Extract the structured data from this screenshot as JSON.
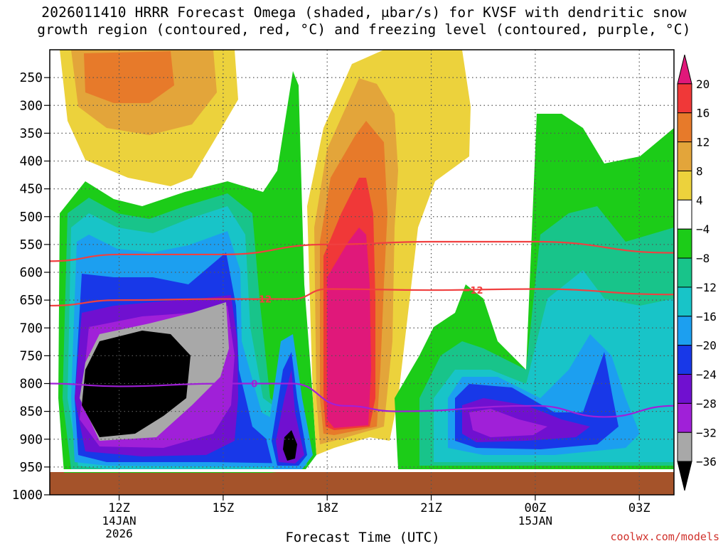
{
  "title_line1": "2026011410 HRRR Forecast Omega (shaded, μbar/s) for KVSF with dendritic snow",
  "title_line2": "growth region (contoured, red, °C) and freezing level (contoured, purple, °C)",
  "chart_data": {
    "type": "heatmap",
    "xlabel": "Forecast Time (UTC)",
    "x_ticks": [
      {
        "label": "12Z",
        "sub": [
          "14JAN",
          "2026"
        ],
        "hour": 12
      },
      {
        "label": "15Z",
        "sub": [],
        "hour": 15
      },
      {
        "label": "18Z",
        "sub": [],
        "hour": 18
      },
      {
        "label": "21Z",
        "sub": [],
        "hour": 21
      },
      {
        "label": "00Z",
        "sub": [
          "15JAN"
        ],
        "hour": 24
      },
      {
        "label": "03Z",
        "sub": [],
        "hour": 27
      }
    ],
    "xlim_hours": [
      10,
      28
    ],
    "y_ticks": [
      250,
      300,
      350,
      400,
      450,
      500,
      550,
      600,
      650,
      700,
      750,
      800,
      850,
      900,
      950,
      1000
    ],
    "ylim_hPa": [
      200,
      1000
    ],
    "colorbar": {
      "labels": [
        "20",
        "16",
        "12",
        "8",
        "4",
        "−4",
        "−8",
        "−12",
        "−16",
        "−20",
        "−24",
        "−28",
        "−32",
        "−36"
      ],
      "colors": [
        "#e0187a",
        "#f03838",
        "#e77a2a",
        "#e3a53a",
        "#ecd23c",
        "#ffffff",
        "#1ccc18",
        "#18c48a",
        "#18c4c8",
        "#1c9ff0",
        "#1838e8",
        "#7010d0",
        "#a020d8",
        "#a8a8a8",
        "#000000"
      ]
    },
    "contours": [
      {
        "label": "−12",
        "color": "#f04040",
        "points": [
          [
            10,
            580
          ],
          [
            12,
            568
          ],
          [
            15,
            568
          ],
          [
            18,
            550
          ],
          [
            21,
            545
          ],
          [
            24,
            545
          ],
          [
            28,
            565
          ]
        ]
      },
      {
        "label": "−12",
        "color": "#f04040",
        "points": [
          [
            10,
            660
          ],
          [
            12,
            650
          ],
          [
            15,
            648
          ],
          [
            17,
            648
          ],
          [
            18,
            630
          ],
          [
            21,
            632
          ],
          [
            24,
            630
          ],
          [
            28,
            640
          ]
        ]
      },
      {
        "label": "0",
        "color": "#a020d8",
        "points": [
          [
            10,
            800
          ],
          [
            12,
            805
          ],
          [
            15,
            800
          ],
          [
            17,
            800
          ],
          [
            18.5,
            840
          ],
          [
            20,
            850
          ],
          [
            24,
            840
          ],
          [
            26,
            860
          ],
          [
            28,
            840
          ]
        ]
      }
    ],
    "contour_labels": [
      {
        "text": "−12",
        "color": "#f04040",
        "at": [
          16.1,
          648
        ]
      },
      {
        "text": "−12",
        "color": "#f04040",
        "at": [
          22.2,
          632
        ]
      },
      {
        "text": "0",
        "color": "#a020d8",
        "at": [
          15.9,
          800
        ]
      }
    ]
  },
  "credit": "coolwx.com/models"
}
